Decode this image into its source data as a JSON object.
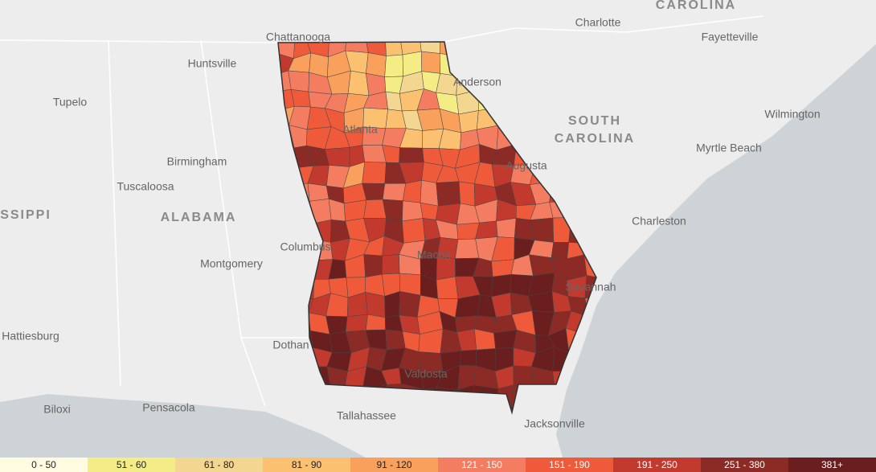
{
  "map_labels": [
    "CAROLINA",
    "Charlotte",
    "Fayetteville",
    "Chattanooga",
    "Huntsville",
    "Anderson",
    "Tupelo",
    "SOUTH",
    "CAROLINA",
    "Wilmington",
    "Atlanta",
    "Birmingham",
    "Augusta",
    "Myrtle Beach",
    "Tuscaloosa",
    "SSIPPI",
    "ALABAMA",
    "Charleston",
    "Columbus",
    "Montgomery",
    "Macon",
    "Savannah",
    "Hattiesburg",
    "Dothan",
    "Valdosta",
    "Biloxi",
    "Pensacola",
    "Tallahassee",
    "Jacksonville"
  ],
  "legend": [
    {
      "label": "0 - 50",
      "color": "#fffbe0"
    },
    {
      "label": "51 - 60",
      "color": "#f4ec85"
    },
    {
      "label": "61 - 80",
      "color": "#f3d68f"
    },
    {
      "label": "81 - 90",
      "color": "#fbc070"
    },
    {
      "label": "91 - 120",
      "color": "#f8a05c"
    },
    {
      "label": "121 - 150",
      "color": "#f47c60"
    },
    {
      "label": "151 - 190",
      "color": "#ee5a3a"
    },
    {
      "label": "191 - 250",
      "color": "#c23a2e"
    },
    {
      "label": "251 - 380",
      "color": "#8c2b25"
    },
    {
      "label": "381+",
      "color": "#6b1e1e"
    }
  ]
}
